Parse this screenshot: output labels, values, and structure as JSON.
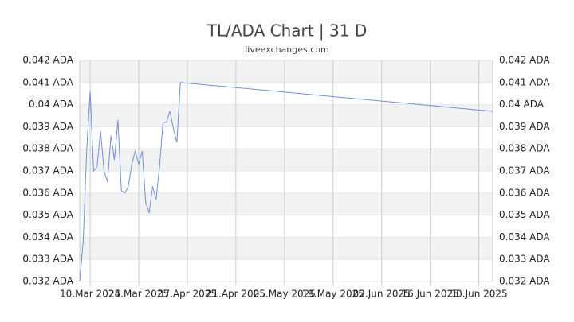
{
  "chart_data": {
    "type": "line",
    "title": "TL/ADA Chart | 31 D",
    "subtitle": "liveexchanges.com",
    "x": [
      "2025-03-07",
      "2025-03-08",
      "2025-03-09",
      "2025-03-10",
      "2025-03-11",
      "2025-03-12",
      "2025-03-13",
      "2025-03-14",
      "2025-03-15",
      "2025-03-16",
      "2025-03-17",
      "2025-03-18",
      "2025-03-19",
      "2025-03-20",
      "2025-03-21",
      "2025-03-22",
      "2025-03-23",
      "2025-03-24",
      "2025-03-25",
      "2025-03-26",
      "2025-03-27",
      "2025-03-28",
      "2025-03-29",
      "2025-03-30",
      "2025-03-31",
      "2025-04-01",
      "2025-04-02",
      "2025-04-03",
      "2025-04-04",
      "2025-04-05",
      "2025-07-04"
    ],
    "series": [
      {
        "name": "TL/ADA",
        "color": "#7090d8",
        "values": [
          0.032,
          0.0338,
          0.0379,
          0.0406,
          0.037,
          0.0372,
          0.0388,
          0.037,
          0.0365,
          0.0386,
          0.0375,
          0.0393,
          0.0361,
          0.036,
          0.0363,
          0.0373,
          0.0379,
          0.0373,
          0.0379,
          0.0356,
          0.0351,
          0.0363,
          0.0357,
          0.0372,
          0.0392,
          0.0392,
          0.0397,
          0.0389,
          0.0383,
          0.041,
          0.0397
        ]
      }
    ],
    "xlim": [
      "2025-03-07",
      "2025-07-04"
    ],
    "xticks": [
      {
        "value": "2025-03-10",
        "label": "10.Mar 2025"
      },
      {
        "value": "2025-03-24",
        "label": "24.Mar 2025"
      },
      {
        "value": "2025-04-07",
        "label": "07.Apr 2025"
      },
      {
        "value": "2025-04-21",
        "label": "21.Apr 2025"
      },
      {
        "value": "2025-05-05",
        "label": "05.May 2025"
      },
      {
        "value": "2025-05-19",
        "label": "19.May 2025"
      },
      {
        "value": "2025-06-02",
        "label": "02.Jun 2025"
      },
      {
        "value": "2025-06-16",
        "label": "16.Jun 2025"
      },
      {
        "value": "2025-06-30",
        "label": "30.Jun 2025"
      }
    ],
    "ylim": [
      0.032,
      0.042
    ],
    "yticks": [
      {
        "value": 0.032,
        "label": "0.032 ADA"
      },
      {
        "value": 0.033,
        "label": "0.033 ADA"
      },
      {
        "value": 0.034,
        "label": "0.034 ADA"
      },
      {
        "value": 0.035,
        "label": "0.035 ADA"
      },
      {
        "value": 0.036,
        "label": "0.036 ADA"
      },
      {
        "value": 0.037,
        "label": "0.037 ADA"
      },
      {
        "value": 0.038,
        "label": "0.038 ADA"
      },
      {
        "value": 0.039,
        "label": "0.039 ADA"
      },
      {
        "value": 0.04,
        "label": "0.04 ADA"
      },
      {
        "value": 0.041,
        "label": "0.041 ADA"
      },
      {
        "value": 0.042,
        "label": "0.042 ADA"
      }
    ],
    "grid": true
  }
}
